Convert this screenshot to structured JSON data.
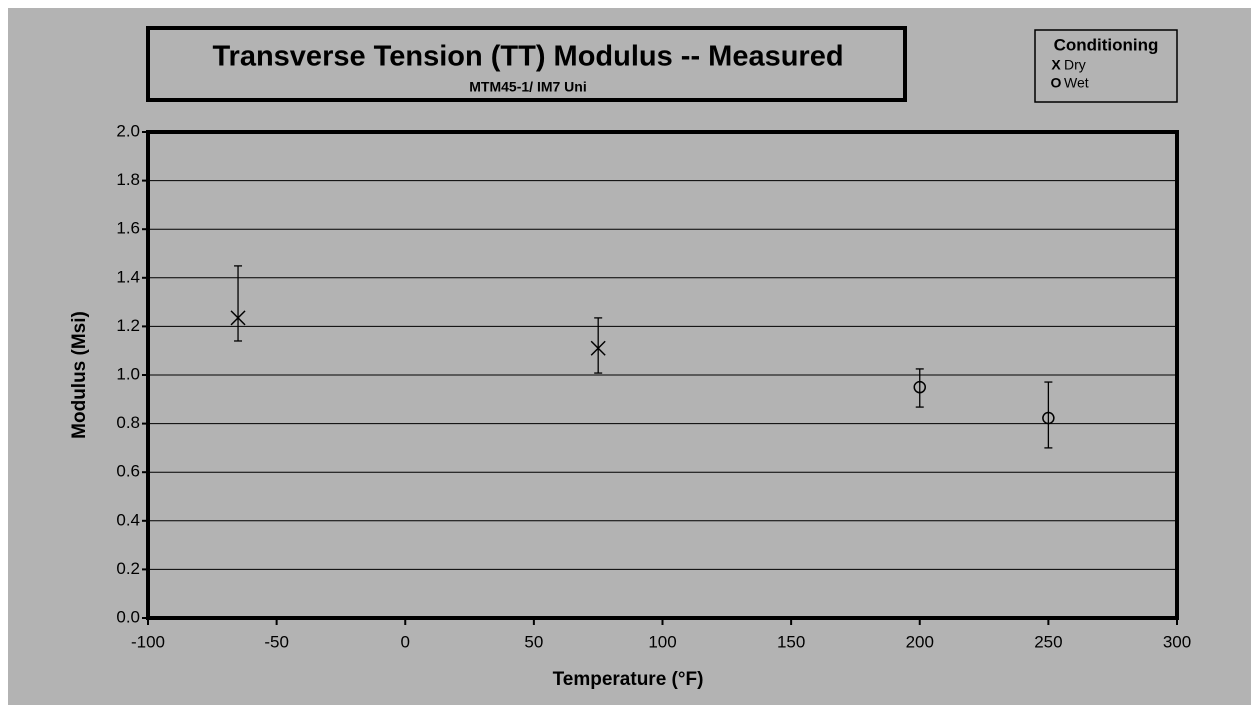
{
  "chart_data": {
    "type": "scatter",
    "title": "Transverse Tension (TT) Modulus -- Measured",
    "subtitle": "MTM45-1/ IM7 Uni",
    "x_label": "Temperature (°F)",
    "y_label": "Modulus (Msi)",
    "legend_title": "Conditioning",
    "legend": "top-right",
    "grid": true,
    "xlim": [
      -100,
      300
    ],
    "xticks": [
      -100,
      -50,
      0,
      50,
      100,
      150,
      200,
      250,
      300
    ],
    "ylim": [
      0,
      2
    ],
    "yticks": [
      {
        "value": 0,
        "label": "0.0"
      },
      0.2,
      0.4,
      0.6,
      0.8,
      {
        "value": 1,
        "label": "1.0"
      },
      1.2,
      1.4,
      1.6,
      1.8,
      {
        "value": 2,
        "label": "2.0"
      }
    ],
    "series": [
      {
        "name": "Dry",
        "symbol": "X",
        "marker": "x",
        "color": "#000000",
        "x": [
          -65,
          75
        ],
        "values": [
          1.235,
          1.11
        ],
        "upper": [
          1.449,
          1.235
        ],
        "lower": [
          1.14,
          1.008
        ]
      },
      {
        "name": "Wet",
        "symbol": "O",
        "marker": "o",
        "color": "#000000",
        "x": [
          200,
          250
        ],
        "values": [
          0.95,
          0.823
        ],
        "upper": [
          1.025,
          0.971
        ],
        "lower": [
          0.868,
          0.7
        ]
      }
    ]
  }
}
